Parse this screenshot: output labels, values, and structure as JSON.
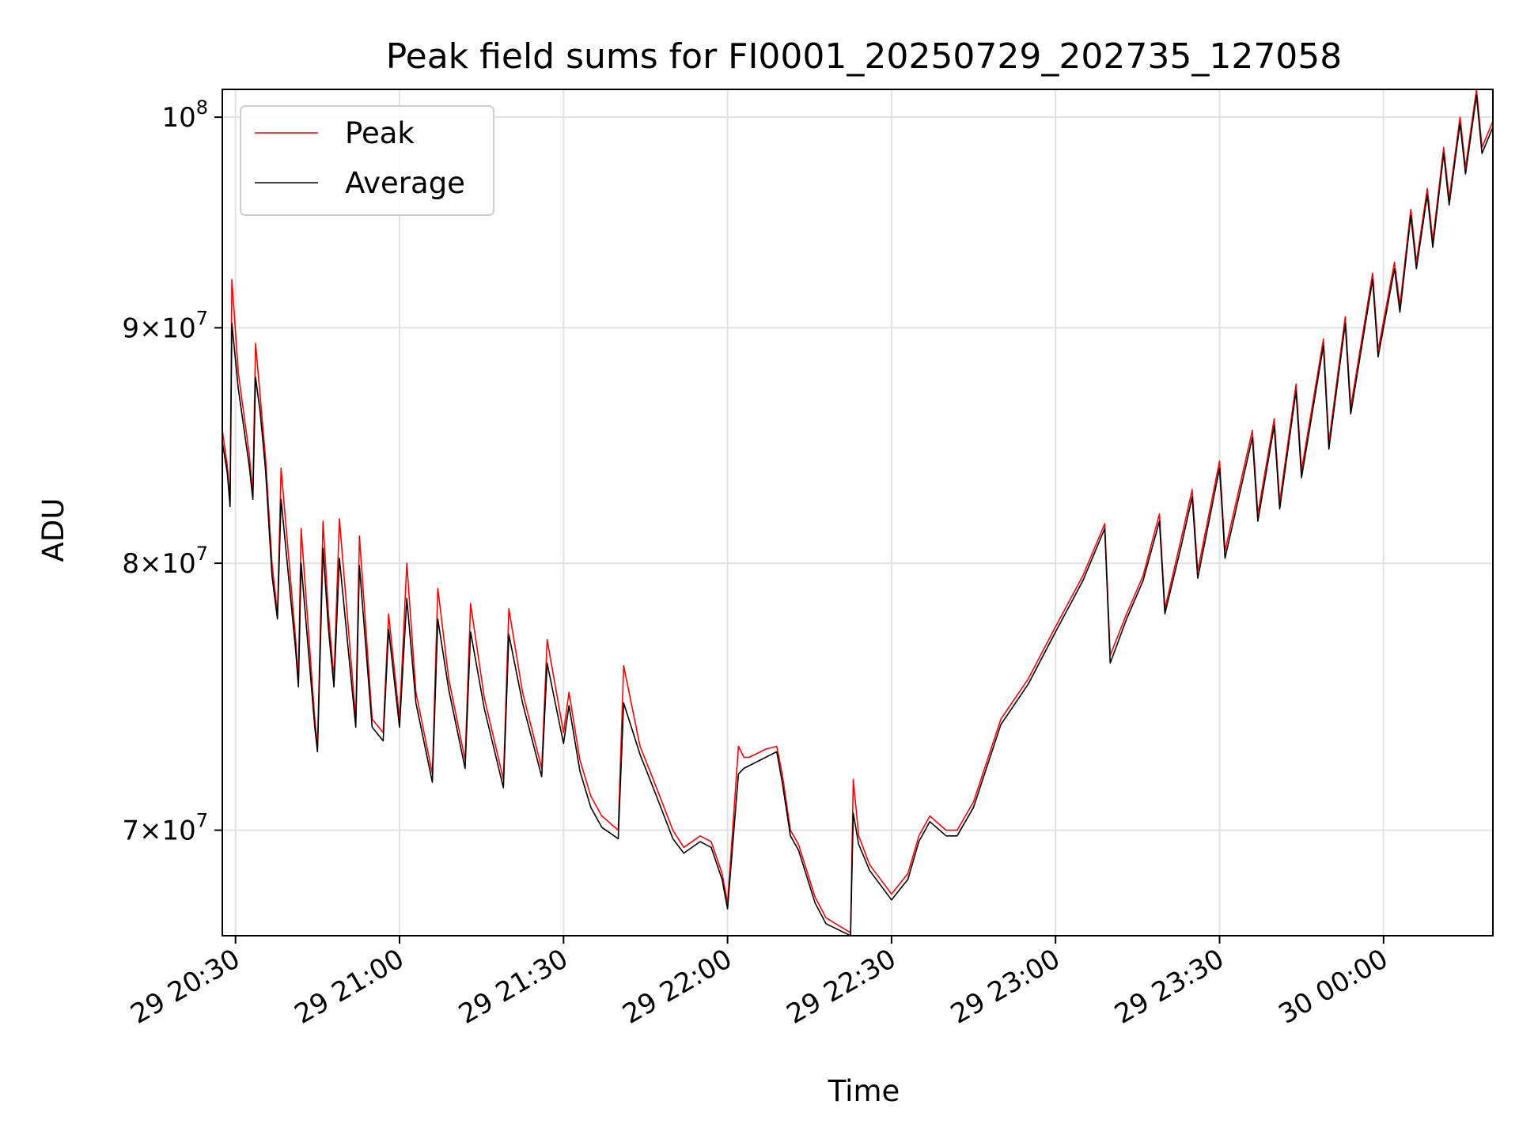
{
  "chart_data": {
    "type": "line",
    "title": "Peak field sums for FI0001_20250729_202735_127058",
    "xlabel": "Time",
    "ylabel": "ADU",
    "y_scale": "log",
    "ylim": [
      66400000,
      101400000
    ],
    "xlim": [
      "2025-07-29 20:27:35",
      "2025-07-30 00:20:00"
    ],
    "x_ticks": [
      {
        "at": "2025-07-29 20:30:00",
        "label": "29 20:30"
      },
      {
        "at": "2025-07-29 21:00:00",
        "label": "29 21:00"
      },
      {
        "at": "2025-07-29 21:30:00",
        "label": "29 21:30"
      },
      {
        "at": "2025-07-29 22:00:00",
        "label": "29 22:00"
      },
      {
        "at": "2025-07-29 22:30:00",
        "label": "29 22:30"
      },
      {
        "at": "2025-07-29 23:00:00",
        "label": "29 23:00"
      },
      {
        "at": "2025-07-29 23:30:00",
        "label": "29 23:30"
      },
      {
        "at": "2025-07-30 00:00:00",
        "label": "30 00:00"
      }
    ],
    "y_ticks": [
      {
        "value": 70000000,
        "mantissa": "7",
        "base": "10",
        "exp": "7"
      },
      {
        "value": 80000000,
        "mantissa": "8",
        "base": "10",
        "exp": "7"
      },
      {
        "value": 90000000,
        "mantissa": "9",
        "base": "10",
        "exp": "7"
      },
      {
        "value": 100000000,
        "mantissa": "",
        "base": "10",
        "exp": "8"
      }
    ],
    "grid": true,
    "legend_position": "top-left",
    "series": [
      {
        "name": "Peak",
        "color": "#ff0000",
        "x": [
          "2025-07-29 20:27:35",
          "2025-07-29 20:28:30",
          "2025-07-29 20:29:00",
          "2025-07-29 20:29:20",
          "2025-07-29 20:30:30",
          "2025-07-29 20:32:30",
          "2025-07-29 20:33:10",
          "2025-07-29 20:33:40",
          "2025-07-29 20:34:30",
          "2025-07-29 20:35:30",
          "2025-07-29 20:36:40",
          "2025-07-29 20:37:40",
          "2025-07-29 20:38:20",
          "2025-07-29 20:41:00",
          "2025-07-29 20:41:30",
          "2025-07-29 20:42:00",
          "2025-07-29 20:44:30",
          "2025-07-29 20:45:00",
          "2025-07-29 20:46:00",
          "2025-07-29 20:47:00",
          "2025-07-29 20:48:00",
          "2025-07-29 20:49:00",
          "2025-07-29 20:52:00",
          "2025-07-29 20:52:40",
          "2025-07-29 20:55:00",
          "2025-07-29 20:57:00",
          "2025-07-29 20:58:00",
          "2025-07-29 21:00:00",
          "2025-07-29 21:01:20",
          "2025-07-29 21:03:00",
          "2025-07-29 21:06:00",
          "2025-07-29 21:07:00",
          "2025-07-29 21:09:00",
          "2025-07-29 21:12:00",
          "2025-07-29 21:13:00",
          "2025-07-29 21:15:30",
          "2025-07-29 21:19:00",
          "2025-07-29 21:20:00",
          "2025-07-29 21:22:30",
          "2025-07-29 21:26:00",
          "2025-07-29 21:27:00",
          "2025-07-29 21:30:00",
          "2025-07-29 21:31:00",
          "2025-07-29 21:33:00",
          "2025-07-29 21:35:00",
          "2025-07-29 21:37:00",
          "2025-07-29 21:40:00",
          "2025-07-29 21:41:00",
          "2025-07-29 21:44:00",
          "2025-07-29 21:46:00",
          "2025-07-29 21:48:00",
          "2025-07-29 21:50:00",
          "2025-07-29 21:52:00",
          "2025-07-29 21:55:00",
          "2025-07-29 21:57:00",
          "2025-07-29 21:59:00",
          "2025-07-29 22:00:00",
          "2025-07-29 22:02:00",
          "2025-07-29 22:03:00",
          "2025-07-29 22:04:00",
          "2025-07-29 22:07:00",
          "2025-07-29 22:09:00",
          "2025-07-29 22:10:00",
          "2025-07-29 22:11:30",
          "2025-07-29 22:13:00",
          "2025-07-29 22:16:00",
          "2025-07-29 22:18:00",
          "2025-07-29 22:22:30",
          "2025-07-29 22:23:00",
          "2025-07-29 22:24:00",
          "2025-07-29 22:26:00",
          "2025-07-29 22:30:00",
          "2025-07-29 22:33:00",
          "2025-07-29 22:35:00",
          "2025-07-29 22:37:00",
          "2025-07-29 22:40:00",
          "2025-07-29 22:42:00",
          "2025-07-29 22:45:00",
          "2025-07-29 22:50:00",
          "2025-07-29 22:55:00",
          "2025-07-29 23:00:00",
          "2025-07-29 23:05:00",
          "2025-07-29 23:09:00",
          "2025-07-29 23:10:00",
          "2025-07-29 23:13:00",
          "2025-07-29 23:16:00",
          "2025-07-29 23:19:00",
          "2025-07-29 23:20:00",
          "2025-07-29 23:23:00",
          "2025-07-29 23:25:00",
          "2025-07-29 23:26:00",
          "2025-07-29 23:30:00",
          "2025-07-29 23:31:00",
          "2025-07-29 23:36:00",
          "2025-07-29 23:37:00",
          "2025-07-29 23:40:00",
          "2025-07-29 23:41:00",
          "2025-07-29 23:44:00",
          "2025-07-29 23:45:00",
          "2025-07-29 23:49:00",
          "2025-07-29 23:50:00",
          "2025-07-29 23:53:00",
          "2025-07-29 23:54:00",
          "2025-07-29 23:58:00",
          "2025-07-29 23:59:00",
          "2025-07-30 00:02:00",
          "2025-07-30 00:03:00",
          "2025-07-30 00:05:00",
          "2025-07-30 00:06:00",
          "2025-07-30 00:08:00",
          "2025-07-30 00:09:00",
          "2025-07-30 00:11:00",
          "2025-07-30 00:12:00",
          "2025-07-30 00:14:00",
          "2025-07-30 00:15:00",
          "2025-07-30 00:17:00",
          "2025-07-30 00:18:00",
          "2025-07-30 00:20:00"
        ],
        "values": [
          85500000,
          84000000,
          82500000,
          92200000,
          88000000,
          84500000,
          82800000,
          89300000,
          87000000,
          84300000,
          80000000,
          78000000,
          83900000,
          77000000,
          75500000,
          81400000,
          74000000,
          73000000,
          81700000,
          78000000,
          75500000,
          81800000,
          74000000,
          81100000,
          74000000,
          73500000,
          78000000,
          74000000,
          80000000,
          75000000,
          72000000,
          79000000,
          75500000,
          72500000,
          78400000,
          74800000,
          71800000,
          78200000,
          75000000,
          72200000,
          77000000,
          73500000,
          75000000,
          72500000,
          71200000,
          70500000,
          70000000,
          76000000,
          73000000,
          72000000,
          71000000,
          70000000,
          69400000,
          69800000,
          69600000,
          68500000,
          67500000,
          73000000,
          72600000,
          72600000,
          72900000,
          73000000,
          72000000,
          70000000,
          69500000,
          67700000,
          67000000,
          66500000,
          71800000,
          69800000,
          68800000,
          67800000,
          68500000,
          69800000,
          70500000,
          70000000,
          70000000,
          71000000,
          74000000,
          75500000,
          77500000,
          79500000,
          81600000,
          76400000,
          78000000,
          79500000,
          82000000,
          78200000,
          81000000,
          83000000,
          79700000,
          84200000,
          80500000,
          85500000,
          82000000,
          86000000,
          82500000,
          87500000,
          83800000,
          89500000,
          85000000,
          90500000,
          86500000,
          92500000,
          89000000,
          93000000,
          91000000,
          95500000,
          93000000,
          96500000,
          94000000,
          98500000,
          96000000,
          100000000,
          97500000,
          101400000,
          98500000,
          99800000
        ]
      },
      {
        "name": "Average",
        "color": "#000000",
        "x": [
          "2025-07-29 20:27:35",
          "2025-07-29 20:28:30",
          "2025-07-29 20:29:00",
          "2025-07-29 20:29:20",
          "2025-07-29 20:30:30",
          "2025-07-29 20:32:30",
          "2025-07-29 20:33:10",
          "2025-07-29 20:33:40",
          "2025-07-29 20:34:30",
          "2025-07-29 20:35:30",
          "2025-07-29 20:36:40",
          "2025-07-29 20:37:40",
          "2025-07-29 20:38:20",
          "2025-07-29 20:41:00",
          "2025-07-29 20:41:30",
          "2025-07-29 20:42:00",
          "2025-07-29 20:44:30",
          "2025-07-29 20:45:00",
          "2025-07-29 20:46:00",
          "2025-07-29 20:47:00",
          "2025-07-29 20:48:00",
          "2025-07-29 20:49:00",
          "2025-07-29 20:52:00",
          "2025-07-29 20:52:40",
          "2025-07-29 20:55:00",
          "2025-07-29 20:57:00",
          "2025-07-29 20:58:00",
          "2025-07-29 21:00:00",
          "2025-07-29 21:01:20",
          "2025-07-29 21:03:00",
          "2025-07-29 21:06:00",
          "2025-07-29 21:07:00",
          "2025-07-29 21:09:00",
          "2025-07-29 21:12:00",
          "2025-07-29 21:13:00",
          "2025-07-29 21:15:30",
          "2025-07-29 21:19:00",
          "2025-07-29 21:20:00",
          "2025-07-29 21:22:30",
          "2025-07-29 21:26:00",
          "2025-07-29 21:27:00",
          "2025-07-29 21:30:00",
          "2025-07-29 21:31:00",
          "2025-07-29 21:33:00",
          "2025-07-29 21:35:00",
          "2025-07-29 21:37:00",
          "2025-07-29 21:40:00",
          "2025-07-29 21:41:00",
          "2025-07-29 21:44:00",
          "2025-07-29 21:46:00",
          "2025-07-29 21:48:00",
          "2025-07-29 21:50:00",
          "2025-07-29 21:52:00",
          "2025-07-29 21:55:00",
          "2025-07-29 21:57:00",
          "2025-07-29 21:59:00",
          "2025-07-29 22:00:00",
          "2025-07-29 22:02:00",
          "2025-07-29 22:03:00",
          "2025-07-29 22:04:00",
          "2025-07-29 22:07:00",
          "2025-07-29 22:09:00",
          "2025-07-29 22:10:00",
          "2025-07-29 22:11:30",
          "2025-07-29 22:13:00",
          "2025-07-29 22:16:00",
          "2025-07-29 22:18:00",
          "2025-07-29 22:22:30",
          "2025-07-29 22:23:00",
          "2025-07-29 22:24:00",
          "2025-07-29 22:26:00",
          "2025-07-29 22:30:00",
          "2025-07-29 22:33:00",
          "2025-07-29 22:35:00",
          "2025-07-29 22:37:00",
          "2025-07-29 22:40:00",
          "2025-07-29 22:42:00",
          "2025-07-29 22:45:00",
          "2025-07-29 22:50:00",
          "2025-07-29 22:55:00",
          "2025-07-29 23:00:00",
          "2025-07-29 23:05:00",
          "2025-07-29 23:09:00",
          "2025-07-29 23:10:00",
          "2025-07-29 23:13:00",
          "2025-07-29 23:16:00",
          "2025-07-29 23:19:00",
          "2025-07-29 23:20:00",
          "2025-07-29 23:23:00",
          "2025-07-29 23:25:00",
          "2025-07-29 23:26:00",
          "2025-07-29 23:30:00",
          "2025-07-29 23:31:00",
          "2025-07-29 23:36:00",
          "2025-07-29 23:37:00",
          "2025-07-29 23:40:00",
          "2025-07-29 23:41:00",
          "2025-07-29 23:44:00",
          "2025-07-29 23:45:00",
          "2025-07-29 23:49:00",
          "2025-07-29 23:50:00",
          "2025-07-29 23:53:00",
          "2025-07-29 23:54:00",
          "2025-07-29 23:58:00",
          "2025-07-29 23:59:00",
          "2025-07-30 00:02:00",
          "2025-07-30 00:03:00",
          "2025-07-30 00:05:00",
          "2025-07-30 00:06:00",
          "2025-07-30 00:08:00",
          "2025-07-30 00:09:00",
          "2025-07-30 00:11:00",
          "2025-07-30 00:12:00",
          "2025-07-30 00:14:00",
          "2025-07-30 00:15:00",
          "2025-07-30 00:17:00",
          "2025-07-30 00:18:00",
          "2025-07-30 00:20:00"
        ],
        "values": [
          85000000,
          83700000,
          82300000,
          90200000,
          87300000,
          84000000,
          82600000,
          87800000,
          86300000,
          83800000,
          79500000,
          77800000,
          82600000,
          76600000,
          75200000,
          80000000,
          73700000,
          72800000,
          80600000,
          77400000,
          75200000,
          80200000,
          73700000,
          79900000,
          73700000,
          73200000,
          77400000,
          73700000,
          78600000,
          74600000,
          71700000,
          77800000,
          75100000,
          72200000,
          77300000,
          74400000,
          71500000,
          77200000,
          74600000,
          71900000,
          76100000,
          73100000,
          74500000,
          72100000,
          70800000,
          70100000,
          69700000,
          74600000,
          72700000,
          71700000,
          70700000,
          69700000,
          69200000,
          69600000,
          69400000,
          68300000,
          67300000,
          72000000,
          72200000,
          72300000,
          72600000,
          72800000,
          71700000,
          69800000,
          69300000,
          67500000,
          66800000,
          66400000,
          70600000,
          69500000,
          68600000,
          67600000,
          68300000,
          69600000,
          70300000,
          69800000,
          69800000,
          70800000,
          73800000,
          75300000,
          77300000,
          79300000,
          81400000,
          76100000,
          77800000,
          79300000,
          81700000,
          78000000,
          80700000,
          82700000,
          79400000,
          83900000,
          80200000,
          85200000,
          81700000,
          85700000,
          82200000,
          87200000,
          83500000,
          89200000,
          84700000,
          90200000,
          86200000,
          92200000,
          88700000,
          92700000,
          90700000,
          95200000,
          92700000,
          96200000,
          93700000,
          98200000,
          95700000,
          99700000,
          97200000,
          101100000,
          98200000,
          99500000
        ]
      }
    ]
  }
}
